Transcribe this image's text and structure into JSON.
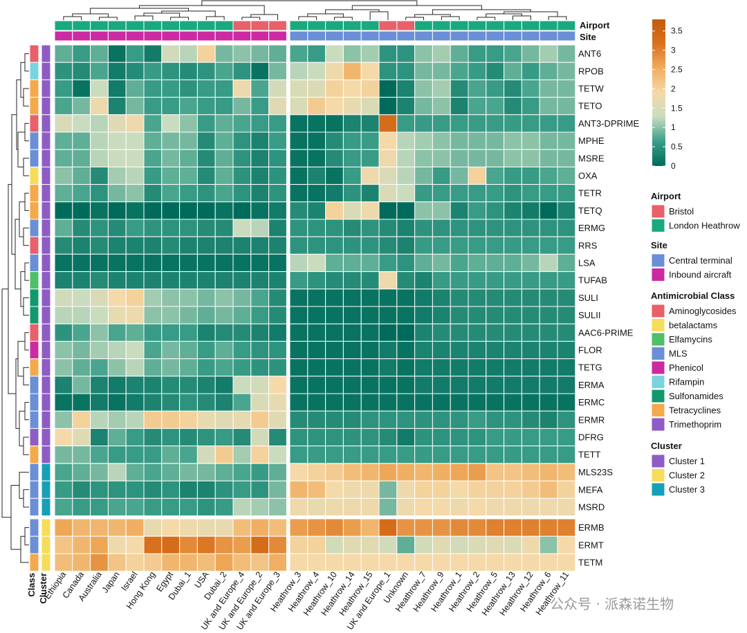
{
  "chart_data": {
    "type": "heatmap",
    "annotation_labels": {
      "airport": "Airport",
      "site": "Site",
      "class": "Class",
      "cluster": "Cluster"
    },
    "columns_left": [
      "Ethiopia",
      "Canada",
      "Australia",
      "Japan",
      "Israel",
      "Hong Kong",
      "Egypt",
      "Dubai_1",
      "USA",
      "Dubai_2",
      "UK and Europe_4",
      "UK and Europe_2",
      "UK and Europe_3"
    ],
    "columns_right": [
      "Heathrow_3",
      "Heathrow_4",
      "Heathrow_10",
      "Heathrow_14",
      "Heathrow_15",
      "UK and Europe_1",
      "Unknown",
      "Heathrow_7",
      "Heathrow_9",
      "Heathrow_1",
      "Heathrow_2",
      "Heathrow_5",
      "Heathrow_13",
      "Heathrow_12",
      "Heathrow_6",
      "Heathrow_11"
    ],
    "airport_left": [
      "LH",
      "LH",
      "LH",
      "LH",
      "LH",
      "LH",
      "LH",
      "LH",
      "LH",
      "LH",
      "B",
      "B",
      "B"
    ],
    "airport_right": [
      "LH",
      "LH",
      "LH",
      "LH",
      "LH",
      "B",
      "B",
      "LH",
      "LH",
      "LH",
      "LH",
      "LH",
      "LH",
      "LH",
      "LH",
      "LH"
    ],
    "site_left": [
      "IA",
      "IA",
      "IA",
      "IA",
      "IA",
      "IA",
      "IA",
      "IA",
      "IA",
      "IA",
      "IA",
      "IA",
      "IA"
    ],
    "site_right": [
      "CT",
      "CT",
      "CT",
      "CT",
      "CT",
      "CT",
      "CT",
      "CT",
      "CT",
      "CT",
      "CT",
      "CT",
      "CT",
      "CT",
      "CT",
      "CT"
    ],
    "row_groups": [
      {
        "rows": [
          "ANT6",
          "RPOB",
          "TETW",
          "TETO",
          "ANT3-DPRIME",
          "MPHE",
          "MSRE",
          "OXA",
          "TETR",
          "TETQ",
          "ERMG",
          "RRS",
          "LSA",
          "TUFAB",
          "SULI",
          "SULII",
          "AAC6-PRIME",
          "FLOR",
          "TETG",
          "ERMA",
          "ERMC",
          "ERMR",
          "DFRG",
          "TETT"
        ],
        "class": [
          "Aminoglycosides",
          "Rifampin",
          "Tetracyclines",
          "Tetracyclines",
          "Aminoglycosides",
          "MLS",
          "MLS",
          "betalactams",
          "Tetracyclines",
          "Tetracyclines",
          "MLS",
          "Aminoglycosides",
          "MLS",
          "Elfamycins",
          "Sulfonamides",
          "Sulfonamides",
          "Aminoglycosides",
          "Phenicol",
          "Tetracyclines",
          "MLS",
          "MLS",
          "MLS",
          "Trimethoprim",
          "Tetracyclines"
        ],
        "cluster": "Cluster 1"
      },
      {
        "rows": [
          "MLS23S",
          "MEFA",
          "MSRD"
        ],
        "class": [
          "MLS",
          "MLS",
          "MLS"
        ],
        "cluster": "Cluster 3"
      },
      {
        "rows": [
          "ERMB",
          "ERMT",
          "TETM"
        ],
        "class": [
          "MLS",
          "MLS",
          "Tetracyclines"
        ],
        "cluster": "Cluster 2"
      }
    ],
    "values": [
      [
        0.8,
        0.6,
        0.8,
        0.1,
        0.6,
        0.2,
        1.4,
        1.2,
        2.0,
        0.9,
        1.0,
        0.9,
        0.8,
        0.7,
        0.6,
        1.3,
        1.0,
        1.1,
        0.5,
        0.5,
        1.0,
        1.1,
        0.8,
        0.6,
        0.6,
        0.7,
        0.9,
        1.1,
        0.9
      ],
      [
        0.5,
        0.4,
        0.7,
        0.2,
        0.4,
        0.6,
        0.5,
        0.4,
        0.5,
        0.7,
        0.5,
        0.1,
        0.9,
        1.2,
        1.3,
        1.8,
        2.4,
        1.9,
        0.5,
        0.5,
        0.9,
        0.9,
        0.7,
        0.6,
        0.4,
        0.8,
        0.6,
        0.8,
        0.9
      ],
      [
        0.6,
        0.1,
        1.3,
        0.2,
        0.8,
        0.6,
        0.6,
        0.5,
        0.6,
        0.6,
        1.8,
        0.7,
        1.4,
        1.5,
        1.5,
        2.0,
        1.9,
        2.0,
        0.0,
        0.3,
        1.0,
        1.1,
        0.4,
        0.7,
        0.6,
        0.4,
        0.7,
        0.9,
        0.9
      ],
      [
        0.7,
        0.9,
        1.8,
        0.3,
        0.9,
        0.6,
        0.6,
        0.7,
        0.6,
        0.6,
        0.9,
        0.6,
        1.6,
        1.5,
        2.1,
        1.9,
        1.7,
        1.5,
        0.0,
        0.3,
        0.9,
        1.0,
        0.3,
        0.7,
        0.7,
        0.4,
        0.6,
        0.9,
        0.9
      ],
      [
        1.5,
        1.3,
        1.2,
        1.6,
        1.8,
        0.7,
        1.3,
        1.0,
        0.6,
        0.8,
        0.7,
        0.6,
        0.6,
        0.1,
        0.1,
        0.1,
        0.3,
        0.3,
        3.3,
        0.6,
        0.6,
        0.6,
        0.6,
        0.6,
        0.6,
        0.6,
        0.6,
        0.6,
        0.6
      ],
      [
        0.8,
        0.8,
        1.2,
        1.3,
        1.3,
        0.8,
        0.9,
        0.9,
        0.4,
        0.8,
        0.5,
        0.3,
        0.6,
        0.1,
        0.1,
        0.4,
        0.6,
        0.6,
        1.9,
        1.2,
        1.1,
        1.0,
        0.9,
        0.9,
        0.9,
        1.0,
        1.0,
        0.9,
        0.9
      ],
      [
        0.8,
        0.8,
        1.2,
        1.3,
        1.3,
        0.7,
        0.9,
        0.8,
        0.4,
        0.8,
        0.5,
        0.3,
        0.5,
        0.1,
        0.1,
        0.4,
        0.6,
        0.6,
        1.8,
        1.2,
        1.0,
        1.0,
        0.9,
        0.9,
        0.9,
        1.0,
        1.0,
        0.9,
        0.9
      ],
      [
        1.0,
        0.8,
        0.4,
        1.1,
        1.2,
        0.6,
        0.8,
        0.8,
        0.4,
        0.8,
        0.5,
        0.3,
        0.5,
        0.1,
        0.3,
        0.1,
        0.6,
        1.8,
        1.5,
        1.2,
        0.9,
        0.6,
        0.9,
        2.0,
        0.7,
        0.6,
        0.6,
        0.7,
        0.8
      ],
      [
        0.8,
        0.7,
        0.5,
        0.9,
        1.0,
        0.4,
        0.7,
        0.6,
        0.5,
        0.7,
        0.5,
        0.3,
        0.5,
        0.1,
        0.1,
        0.2,
        0.5,
        0.3,
        1.5,
        1.3,
        0.6,
        0.6,
        0.6,
        0.6,
        0.6,
        0.5,
        0.6,
        0.6,
        0.6
      ],
      [
        0.0,
        0.0,
        0.1,
        0.0,
        0.1,
        0.0,
        0.0,
        0.0,
        0.0,
        0.1,
        0.0,
        0.1,
        0.2,
        0.4,
        0.3,
        2.0,
        1.5,
        1.8,
        0.0,
        0.0,
        1.0,
        1.0,
        0.3,
        0.6,
        0.5,
        0.3,
        0.2,
        0.0,
        0.3
      ],
      [
        0.8,
        0.4,
        0.5,
        0.4,
        0.6,
        0.5,
        0.5,
        0.5,
        0.4,
        0.4,
        1.3,
        1.2,
        0.3,
        0.5,
        0.5,
        0.5,
        0.4,
        0.5,
        0.4,
        0.3,
        0.5,
        0.5,
        0.5,
        0.5,
        0.5,
        0.5,
        0.5,
        0.5,
        0.5
      ],
      [
        0.4,
        0.3,
        0.4,
        0.3,
        0.3,
        0.3,
        0.4,
        0.3,
        0.3,
        0.3,
        0.3,
        0.3,
        0.3,
        0.5,
        0.5,
        0.5,
        0.5,
        0.5,
        0.4,
        0.3,
        0.6,
        0.6,
        0.6,
        0.6,
        0.6,
        0.6,
        0.6,
        0.6,
        0.6
      ],
      [
        0.1,
        0.1,
        0.1,
        0.1,
        0.1,
        0.1,
        0.1,
        0.1,
        0.1,
        0.1,
        0.1,
        0.1,
        0.1,
        1.2,
        1.3,
        0.8,
        0.8,
        0.8,
        0.6,
        0.5,
        0.8,
        0.9,
        0.7,
        0.8,
        0.8,
        0.8,
        0.9,
        1.2,
        0.8
      ],
      [
        0.3,
        0.3,
        0.4,
        0.3,
        0.3,
        0.3,
        0.3,
        0.3,
        0.3,
        0.3,
        0.3,
        0.3,
        0.3,
        0.6,
        0.5,
        0.4,
        0.4,
        0.4,
        1.8,
        0.4,
        0.3,
        0.6,
        0.6,
        0.6,
        0.6,
        0.6,
        0.6,
        0.6,
        0.6
      ],
      [
        1.4,
        1.3,
        1.5,
        1.9,
        2.0,
        1.1,
        1.0,
        1.0,
        0.9,
        1.0,
        0.9,
        0.7,
        0.4,
        0.1,
        0.1,
        0.1,
        0.1,
        0.1,
        0.1,
        0.1,
        0.2,
        0.3,
        0.4,
        0.4,
        0.4,
        0.4,
        0.4,
        0.4,
        0.4
      ],
      [
        1.2,
        1.2,
        1.3,
        1.7,
        1.8,
        1.0,
        1.0,
        0.9,
        0.8,
        0.9,
        0.8,
        0.6,
        0.4,
        0.1,
        0.1,
        0.1,
        0.1,
        0.1,
        0.1,
        0.1,
        0.2,
        0.3,
        0.4,
        0.4,
        0.4,
        0.4,
        0.4,
        0.4,
        0.4
      ],
      [
        0.5,
        0.7,
        1.0,
        0.7,
        0.8,
        0.6,
        0.6,
        0.6,
        0.3,
        0.4,
        0.4,
        0.3,
        0.2,
        0.1,
        0.1,
        0.1,
        0.1,
        0.1,
        0.0,
        0.0,
        0.3,
        0.4,
        0.4,
        0.4,
        0.4,
        0.4,
        0.4,
        0.4,
        0.4
      ],
      [
        1.0,
        0.9,
        1.1,
        1.2,
        1.3,
        0.7,
        0.9,
        0.8,
        0.6,
        0.8,
        0.6,
        0.5,
        0.5,
        0.1,
        0.1,
        0.1,
        0.1,
        0.1,
        0.2,
        0.1,
        0.3,
        0.3,
        0.3,
        0.3,
        0.3,
        0.3,
        0.3,
        0.3,
        0.3
      ],
      [
        1.0,
        0.8,
        0.7,
        1.0,
        1.2,
        0.8,
        0.9,
        0.8,
        0.6,
        0.7,
        0.6,
        0.5,
        0.5,
        0.1,
        0.1,
        0.1,
        0.1,
        0.1,
        0.2,
        0.1,
        0.2,
        0.2,
        0.2,
        0.2,
        0.2,
        0.2,
        0.2,
        0.2,
        0.2
      ],
      [
        0.3,
        0.9,
        0.3,
        0.2,
        0.3,
        0.3,
        0.4,
        0.4,
        0.3,
        0.2,
        1.3,
        1.4,
        1.9,
        0.1,
        0.1,
        0.1,
        0.1,
        0.1,
        0.1,
        0.1,
        0.2,
        0.2,
        0.2,
        0.2,
        0.2,
        0.2,
        0.2,
        0.2,
        0.2
      ],
      [
        0.1,
        0.1,
        0.2,
        0.1,
        0.2,
        0.3,
        0.4,
        0.5,
        0.4,
        0.3,
        0.7,
        1.5,
        1.7,
        0.1,
        0.1,
        0.1,
        0.1,
        0.1,
        0.1,
        0.1,
        0.1,
        0.1,
        0.1,
        0.1,
        0.1,
        0.1,
        0.1,
        0.1,
        0.1
      ],
      [
        1.0,
        2.0,
        1.2,
        1.1,
        1.2,
        2.1,
        2.1,
        2.0,
        1.7,
        1.6,
        1.7,
        2.1,
        1.6,
        0.4,
        0.4,
        0.4,
        0.4,
        0.5,
        0.5,
        0.5,
        0.5,
        0.5,
        0.5,
        0.6,
        0.5,
        0.5,
        0.4,
        0.3,
        0.5
      ],
      [
        1.9,
        1.6,
        0.3,
        0.8,
        0.6,
        0.4,
        0.5,
        0.4,
        0.5,
        0.6,
        0.4,
        1.4,
        0.4,
        0.5,
        0.5,
        0.5,
        0.5,
        0.5,
        0.4,
        0.2,
        0.5,
        0.5,
        0.5,
        0.5,
        0.6,
        0.6,
        0.6,
        0.6,
        0.6
      ],
      [
        0.9,
        0.9,
        0.7,
        0.6,
        0.6,
        0.6,
        0.8,
        0.7,
        1.4,
        2.1,
        1.1,
        2.0,
        1.3,
        0.6,
        0.6,
        0.6,
        0.6,
        0.6,
        0.6,
        0.6,
        0.6,
        0.6,
        0.6,
        0.6,
        0.6,
        0.6,
        0.6,
        0.6,
        0.6
      ],
      [
        0.7,
        0.8,
        0.9,
        1.2,
        0.8,
        0.7,
        0.8,
        0.9,
        0.9,
        0.8,
        0.7,
        0.6,
        0.8,
        1.9,
        2.0,
        2.1,
        2.3,
        2.4,
        2.6,
        2.5,
        2.4,
        2.5,
        2.6,
        2.7,
        2.2,
        2.2,
        2.3,
        2.4,
        2.3
      ],
      [
        0.6,
        0.4,
        0.5,
        0.5,
        0.5,
        0.4,
        0.5,
        0.3,
        0.3,
        0.5,
        0.6,
        0.5,
        0.9,
        2.4,
        2.3,
        1.9,
        1.8,
        1.8,
        0.9,
        1.8,
        2.0,
        2.0,
        1.9,
        2.0,
        2.0,
        2.0,
        2.1,
        2.3,
        2.0
      ],
      [
        0.7,
        0.6,
        0.6,
        0.7,
        0.7,
        0.6,
        0.6,
        0.6,
        0.5,
        0.6,
        1.2,
        1.1,
        1.0,
        1.8,
        1.7,
        1.8,
        1.8,
        1.8,
        0.9,
        1.8,
        1.9,
        1.9,
        1.8,
        1.9,
        1.8,
        1.8,
        1.8,
        1.8,
        1.8
      ],
      [
        2.6,
        2.4,
        2.4,
        2.4,
        2.5,
        1.7,
        1.9,
        1.8,
        1.7,
        1.7,
        2.3,
        2.5,
        2.3,
        2.7,
        2.8,
        2.9,
        2.7,
        2.4,
        3.3,
        2.8,
        2.8,
        2.8,
        2.9,
        2.9,
        3.0,
        3.0,
        3.0,
        3.0,
        3.0
      ],
      [
        2.2,
        2.4,
        2.6,
        1.8,
        1.9,
        3.2,
        3.3,
        2.9,
        3.1,
        2.8,
        2.7,
        3.3,
        2.9,
        2.0,
        2.0,
        1.4,
        1.6,
        1.6,
        1.4,
        0.8,
        1.4,
        1.6,
        1.4,
        1.5,
        1.6,
        1.5,
        1.8,
        1.0,
        1.9
      ],
      [
        2.3,
        2.4,
        2.8,
        2.2,
        2.0,
        2.1,
        2.4,
        2.4,
        2.3,
        2.6,
        2.3,
        2.2,
        2.5,
        1.9,
        1.9,
        1.9,
        1.9,
        1.9,
        1.9,
        1.9,
        1.9,
        1.9,
        1.9,
        1.9,
        1.9,
        1.9,
        1.9,
        1.9,
        1.9
      ]
    ],
    "colorbar": {
      "min": 0,
      "max": 3.8,
      "ticks": [
        "3.5",
        "3",
        "2.5",
        "2",
        "1.5",
        "1",
        "0.5",
        "0"
      ]
    },
    "colorscale": [
      "#006b5a",
      "#3a9e88",
      "#c8dcbf",
      "#f5d9a8",
      "#f0ad5e",
      "#d9711e",
      "#c45a0c"
    ],
    "legends": {
      "airport": {
        "title": "Airport",
        "items": [
          {
            "label": "Bristol",
            "color": "#e8606a"
          },
          {
            "label": "London Heathrow",
            "color": "#1aa97f"
          }
        ]
      },
      "site": {
        "title": "Site",
        "items": [
          {
            "label": "Central terminal",
            "color": "#6b8fd6"
          },
          {
            "label": "Inbound aircraft",
            "color": "#cc2aa3"
          }
        ]
      },
      "class": {
        "title": "Antimicrobial Class",
        "items": [
          {
            "label": "Aminoglycosides",
            "color": "#e8606a"
          },
          {
            "label": "betalactams",
            "color": "#f6dc5a"
          },
          {
            "label": "Elfamycins",
            "color": "#4fbf6a"
          },
          {
            "label": "MLS",
            "color": "#6b8fd6"
          },
          {
            "label": "Phenicol",
            "color": "#cc2aa3"
          },
          {
            "label": "Rifampin",
            "color": "#7ad3e0"
          },
          {
            "label": "Sulfonamides",
            "color": "#12986e"
          },
          {
            "label": "Tetracyclines",
            "color": "#f4a94a"
          },
          {
            "label": "Trimethoprim",
            "color": "#8e5cc4"
          }
        ]
      },
      "cluster": {
        "title": "Cluster",
        "items": [
          {
            "label": "Cluster 1",
            "color": "#8e5cc4"
          },
          {
            "label": "Cluster 2",
            "color": "#f6dc5a"
          },
          {
            "label": "Cluster 3",
            "color": "#16a0b8"
          }
        ]
      }
    },
    "watermark": "公众号 · 派森诺生物"
  }
}
